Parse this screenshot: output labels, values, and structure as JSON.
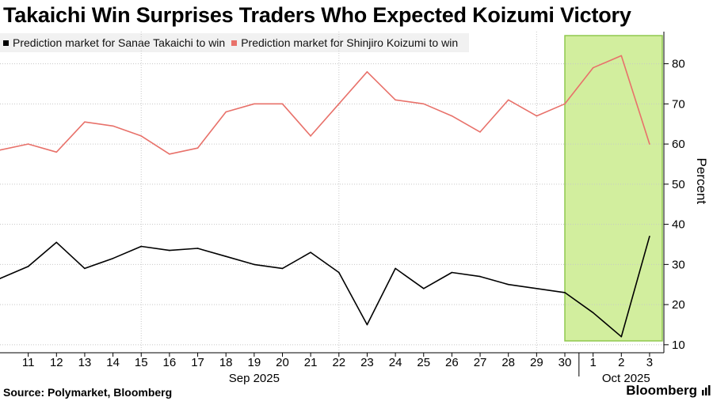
{
  "title": "Takaichi Win Surprises Traders Who Expected Koizumi Victory",
  "source": "Source: Polymarket, Bloomberg",
  "brand": "Bloomberg",
  "colors": {
    "takaichi": "#000000",
    "koizumi": "#e8716a",
    "highlight_fill": "#d2ee9e",
    "highlight_stroke": "#8fc94e",
    "grid": "#c8c8c8"
  },
  "chart_data": {
    "type": "line",
    "title": "Takaichi Win Surprises Traders Who Expected Koizumi Victory",
    "ylabel": "Percent",
    "ylim": [
      8,
      88
    ],
    "yticks": [
      10,
      20,
      30,
      40,
      50,
      60,
      70,
      80
    ],
    "ytick_labels": [
      "10",
      "20",
      "30",
      "40",
      "50",
      "60",
      "70",
      "80"
    ],
    "y_axis_position": "right",
    "grid": "dotted",
    "legend_position": "top-left",
    "x": [
      "2025-09-10",
      "2025-09-11",
      "2025-09-12",
      "2025-09-13",
      "2025-09-14",
      "2025-09-15",
      "2025-09-16",
      "2025-09-17",
      "2025-09-18",
      "2025-09-19",
      "2025-09-20",
      "2025-09-21",
      "2025-09-22",
      "2025-09-23",
      "2025-09-24",
      "2025-09-25",
      "2025-09-26",
      "2025-09-27",
      "2025-09-28",
      "2025-09-29",
      "2025-09-30",
      "2025-10-01",
      "2025-10-02",
      "2025-10-03"
    ],
    "xtick_labels": [
      "11",
      "12",
      "13",
      "14",
      "15",
      "16",
      "17",
      "18",
      "19",
      "20",
      "21",
      "22",
      "23",
      "24",
      "25",
      "26",
      "27",
      "28",
      "29",
      "30",
      "1",
      "2",
      "3"
    ],
    "month_labels": [
      "Sep 2025",
      "Oct 2025"
    ],
    "series": [
      {
        "name": "Prediction market for Sanae Takaichi to win",
        "color": "#000000",
        "values": [
          26.5,
          29.5,
          35.5,
          29,
          31.5,
          34.5,
          33.5,
          34,
          32,
          30,
          29,
          33,
          28,
          15,
          29,
          24,
          28,
          27,
          25,
          24,
          23,
          18,
          12,
          37
        ]
      },
      {
        "name": "Prediction market for Shinjiro Koizumi to win",
        "color": "#e8716a",
        "values": [
          58.5,
          60,
          58,
          65.5,
          64.5,
          62,
          57.5,
          59,
          68,
          70,
          70,
          62,
          70,
          78,
          71,
          70,
          67,
          63,
          71,
          67,
          70,
          79,
          82,
          60
        ]
      }
    ],
    "highlight": {
      "from": "2025-09-30",
      "to": "2025-10-03"
    }
  }
}
